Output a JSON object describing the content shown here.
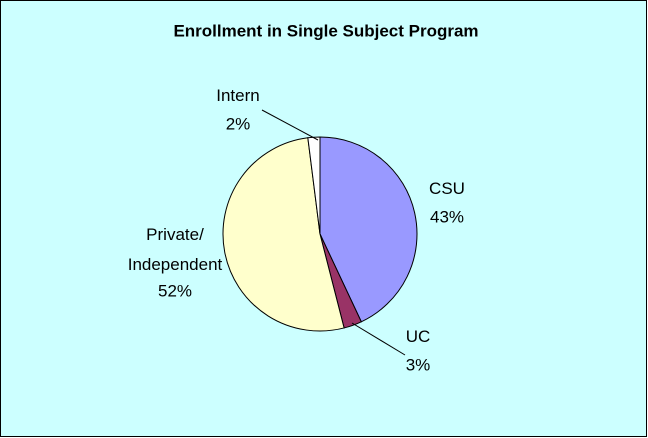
{
  "chart_data": {
    "type": "pie",
    "title": "Enrollment in Single Subject Program",
    "categories": [
      "CSU",
      "UC",
      "Private/ Independent",
      "Intern"
    ],
    "values": [
      43,
      3,
      52,
      2
    ],
    "value_labels": [
      "43%",
      "3%",
      "52%",
      "2%"
    ],
    "colors": [
      "#9999ff",
      "#993366",
      "#ffffcc",
      "#ffffff"
    ]
  }
}
